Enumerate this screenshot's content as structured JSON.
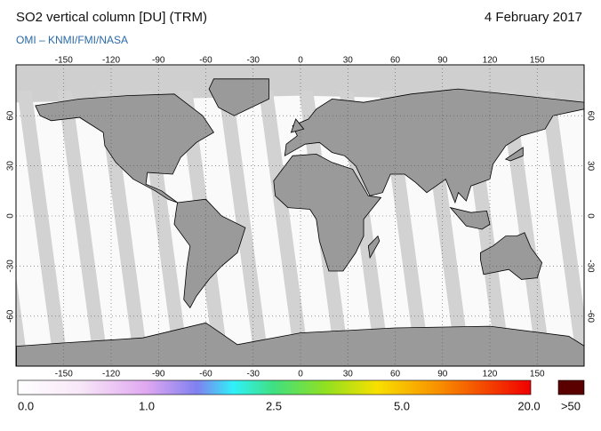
{
  "header": {
    "title": "SO2 vertical column [DU] (TRM)",
    "date": "4 February 2017",
    "source": "OMI – KNMI/FMI/NASA"
  },
  "map": {
    "lon_ticks": [
      -150,
      -120,
      -90,
      -60,
      -30,
      0,
      30,
      60,
      90,
      120,
      150
    ],
    "lat_ticks": [
      60,
      30,
      0,
      -30,
      -60
    ]
  },
  "colorbar": {
    "labels": [
      "0.0",
      "1.0",
      "2.5",
      "5.0",
      "20.0",
      ">50"
    ]
  }
}
